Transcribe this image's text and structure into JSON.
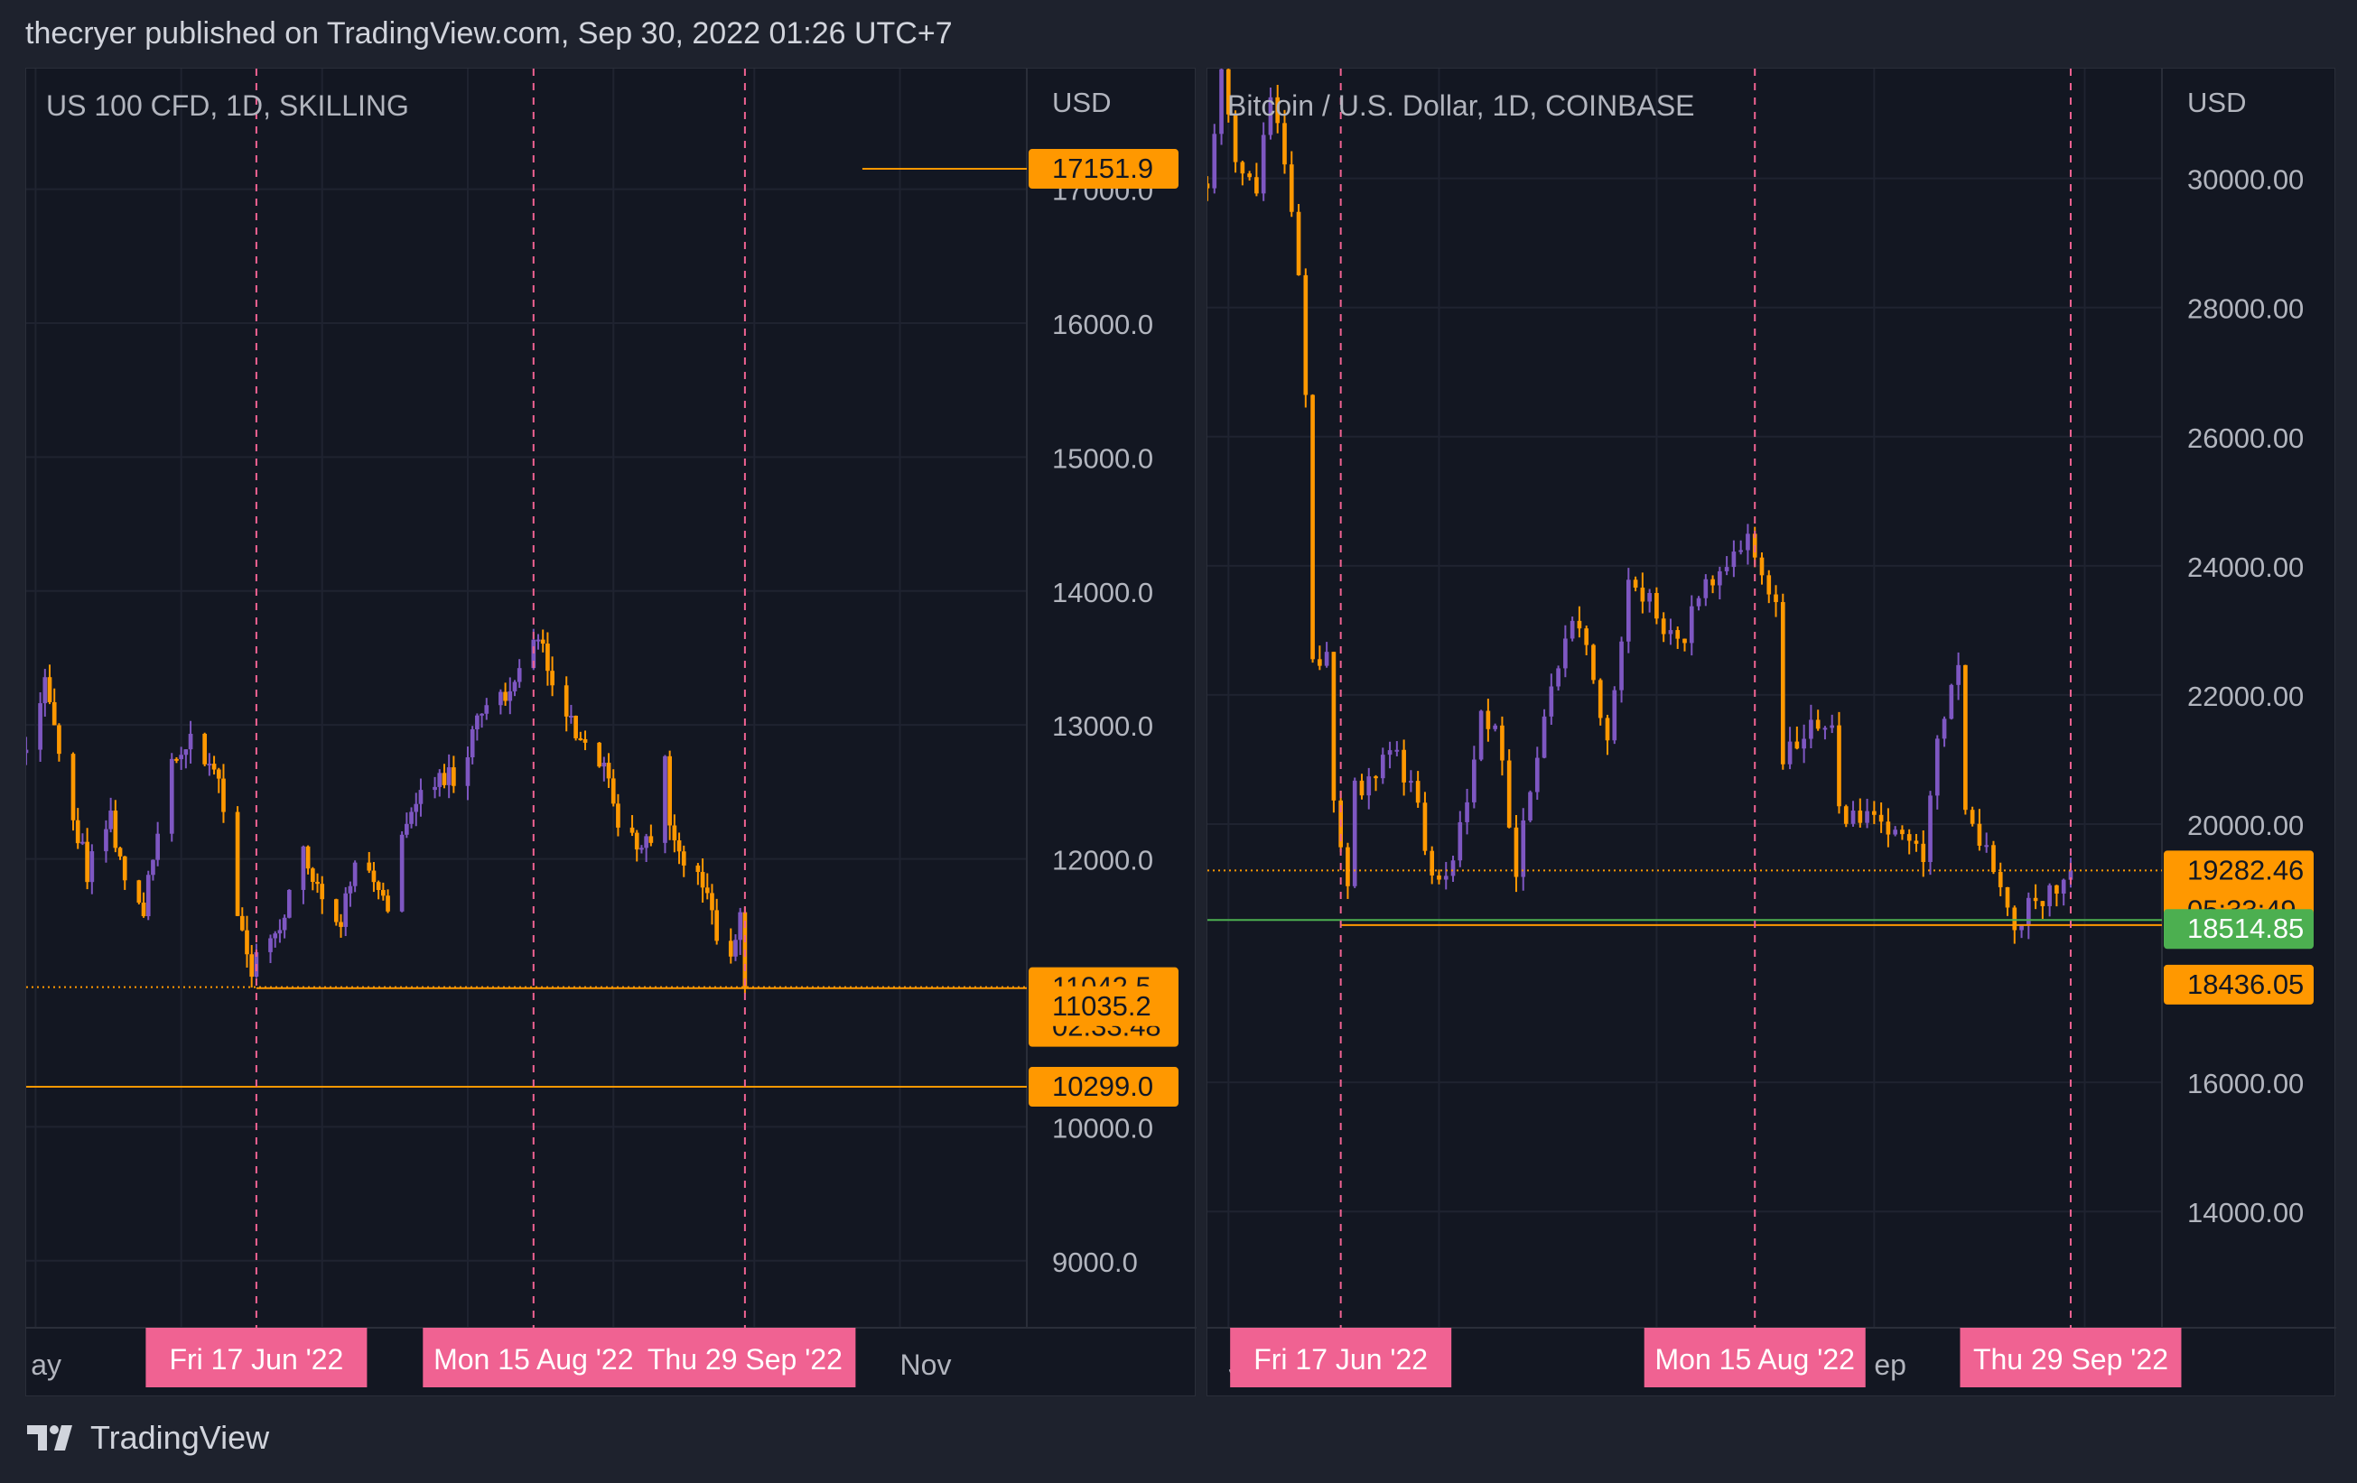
{
  "header": {
    "text": "thecryer published on TradingView.com, Sep 30, 2022 01:26 UTC+7"
  },
  "footer": {
    "brand": "TradingView"
  },
  "chart_data": [
    {
      "type": "candlestick",
      "title": "US 100 CFD, 1D, SKILLING",
      "currency": "USD",
      "ylim": [
        8500,
        17900
      ],
      "yticks": [
        {
          "value": 9000,
          "label": "9000.0"
        },
        {
          "value": 10000,
          "label": "10000.0"
        },
        {
          "value": 12000,
          "label": "12000.0"
        },
        {
          "value": 13000,
          "label": "13000.0"
        },
        {
          "value": 14000,
          "label": "14000.0"
        },
        {
          "value": 15000,
          "label": "15000.0"
        },
        {
          "value": 16000,
          "label": "16000.0"
        },
        {
          "value": 17000,
          "label": "17000.0"
        }
      ],
      "x_start": "2022-04-29",
      "x_end": "2022-11-28",
      "x_tick_labels": [
        {
          "date": "2022-04-30",
          "label": "ay"
        },
        {
          "date": "2022-11-01",
          "label": "Nov"
        }
      ],
      "date_markers": [
        {
          "date": "2022-06-17",
          "label": "Fri 17 Jun '22"
        },
        {
          "date": "2022-08-15",
          "label": "Mon 15 Aug '22"
        },
        {
          "date": "2022-09-29",
          "label": "Thu 29 Sep '22"
        }
      ],
      "lines": [
        {
          "value": 17151.9,
          "start": "2022-10-24",
          "style": "solid",
          "color": "#ff9800"
        },
        {
          "value": 11035.2,
          "start": "2022-06-17",
          "style": "solid",
          "color": "#ff9800"
        },
        {
          "value": 11042.5,
          "start": "2022-04-29",
          "style": "dotted",
          "color": "#ff9800"
        },
        {
          "value": 10299.0,
          "start": "2022-04-29",
          "style": "solid",
          "color": "#ff9800"
        }
      ],
      "price_labels": [
        {
          "value": 17151.9,
          "text": "17151.9",
          "bg": "#ff9800",
          "fg": "#131722"
        },
        {
          "value": 11042.5,
          "text": "11042.5",
          "sub": "02:33:48",
          "bg": "#ff9800",
          "fg": "#131722"
        },
        {
          "value": 11035.2,
          "text": "11035.2",
          "bg": "#ff9800",
          "fg": "#131722"
        },
        {
          "value": 10299.0,
          "text": "10299.0",
          "bg": "#ff9800",
          "fg": "#131722"
        }
      ],
      "key_points": [
        {
          "date": "2022-04-29",
          "close": 12900
        },
        {
          "date": "2022-05-03",
          "close": 13350
        },
        {
          "date": "2022-05-06",
          "close": 12800
        },
        {
          "date": "2022-05-12",
          "close": 11900
        },
        {
          "date": "2022-05-17",
          "close": 12300
        },
        {
          "date": "2022-05-20",
          "close": 11800
        },
        {
          "date": "2022-05-24",
          "close": 11650
        },
        {
          "date": "2022-05-30",
          "close": 12700
        },
        {
          "date": "2022-06-03",
          "close": 12850
        },
        {
          "date": "2022-06-07",
          "close": 12750
        },
        {
          "date": "2022-06-10",
          "close": 12400
        },
        {
          "date": "2022-06-13",
          "close": 11650
        },
        {
          "date": "2022-06-16",
          "close": 11200
        },
        {
          "date": "2022-06-17",
          "close": 11280
        },
        {
          "date": "2022-06-22",
          "close": 11500
        },
        {
          "date": "2022-06-27",
          "close": 12100
        },
        {
          "date": "2022-07-01",
          "close": 11700
        },
        {
          "date": "2022-07-05",
          "close": 11500
        },
        {
          "date": "2022-07-08",
          "close": 12000
        },
        {
          "date": "2022-07-12",
          "close": 11900
        },
        {
          "date": "2022-07-15",
          "close": 11650
        },
        {
          "date": "2022-07-20",
          "close": 12400
        },
        {
          "date": "2022-07-26",
          "close": 12650
        },
        {
          "date": "2022-07-29",
          "close": 12600
        },
        {
          "date": "2022-08-03",
          "close": 13000
        },
        {
          "date": "2022-08-08",
          "close": 13200
        },
        {
          "date": "2022-08-12",
          "close": 13450
        },
        {
          "date": "2022-08-16",
          "close": 13680
        },
        {
          "date": "2022-08-19",
          "close": 13300
        },
        {
          "date": "2022-08-23",
          "close": 13050
        },
        {
          "date": "2022-08-26",
          "close": 12850
        },
        {
          "date": "2022-08-30",
          "close": 12700
        },
        {
          "date": "2022-09-02",
          "close": 12300
        },
        {
          "date": "2022-09-06",
          "close": 12100
        },
        {
          "date": "2022-09-09",
          "close": 12150
        },
        {
          "date": "2022-09-12",
          "close": 12850
        },
        {
          "date": "2022-09-13",
          "close": 12200
        },
        {
          "date": "2022-09-16",
          "close": 11900
        },
        {
          "date": "2022-09-20",
          "close": 11800
        },
        {
          "date": "2022-09-23",
          "close": 11400
        },
        {
          "date": "2022-09-26",
          "close": 11250
        },
        {
          "date": "2022-09-28",
          "close": 11520
        },
        {
          "date": "2022-09-29",
          "close": 11042.5
        }
      ]
    },
    {
      "type": "candlestick",
      "title": "Bitcoin / U.S. Dollar, 1D, COINBASE",
      "currency": "USD",
      "ylim": [
        12200,
        31700
      ],
      "yticks": [
        {
          "value": 14000,
          "label": "14000.00"
        },
        {
          "value": 16000,
          "label": "16000.00"
        },
        {
          "value": 20000,
          "label": "20000.00"
        },
        {
          "value": 22000,
          "label": "22000.00"
        },
        {
          "value": 24000,
          "label": "24000.00"
        },
        {
          "value": 26000,
          "label": "26000.00"
        },
        {
          "value": 28000,
          "label": "28000.00"
        },
        {
          "value": 30000,
          "label": "30000.00"
        }
      ],
      "x_start": "2022-05-29",
      "x_end": "2022-10-12",
      "x_tick_labels": [
        {
          "date": "2022-06-01",
          "label": "Ju"
        },
        {
          "date": "2022-07-01",
          "label": "l"
        },
        {
          "date": "2022-09-01",
          "label": "ep"
        }
      ],
      "date_markers": [
        {
          "date": "2022-06-17",
          "label": "Fri 17 Jun '22"
        },
        {
          "date": "2022-08-15",
          "label": "Mon 15 Aug '22"
        },
        {
          "date": "2022-09-29",
          "label": "Thu 29 Sep '22"
        }
      ],
      "lines": [
        {
          "value": 19282.46,
          "start": "2022-05-29",
          "style": "dotted",
          "color": "#ff9800"
        },
        {
          "value": 18514.85,
          "start": "2022-05-29",
          "style": "solid",
          "color": "#4caf50"
        },
        {
          "value": 18436.05,
          "start": "2022-06-17",
          "style": "solid",
          "color": "#ff9800"
        }
      ],
      "price_labels": [
        {
          "value": 19282.46,
          "text": "19282.46",
          "sub": "05:33:49",
          "bg": "#ff9800",
          "fg": "#131722"
        },
        {
          "value": 18514.85,
          "text": "18514.85",
          "bg": "#4caf50",
          "fg": "#ffffff"
        },
        {
          "value": 18436.05,
          "text": "18436.05",
          "bg": "#ff9800",
          "fg": "#131722"
        }
      ],
      "key_points": [
        {
          "date": "2022-05-29",
          "close": 30000
        },
        {
          "date": "2022-05-31",
          "close": 31700
        },
        {
          "date": "2022-06-02",
          "close": 30300
        },
        {
          "date": "2022-06-05",
          "close": 29900
        },
        {
          "date": "2022-06-07",
          "close": 31300
        },
        {
          "date": "2022-06-09",
          "close": 30200
        },
        {
          "date": "2022-06-11",
          "close": 28500
        },
        {
          "date": "2022-06-12",
          "close": 26600
        },
        {
          "date": "2022-06-13",
          "close": 22500
        },
        {
          "date": "2022-06-15",
          "close": 22500
        },
        {
          "date": "2022-06-16",
          "close": 20400
        },
        {
          "date": "2022-06-18",
          "close": 18900
        },
        {
          "date": "2022-06-19",
          "close": 20500
        },
        {
          "date": "2022-06-21",
          "close": 20700
        },
        {
          "date": "2022-06-24",
          "close": 21200
        },
        {
          "date": "2022-06-27",
          "close": 20600
        },
        {
          "date": "2022-06-30",
          "close": 19300
        },
        {
          "date": "2022-07-03",
          "close": 19300
        },
        {
          "date": "2022-07-07",
          "close": 21600
        },
        {
          "date": "2022-07-09",
          "close": 21600
        },
        {
          "date": "2022-07-12",
          "close": 19300
        },
        {
          "date": "2022-07-14",
          "close": 20500
        },
        {
          "date": "2022-07-18",
          "close": 22500
        },
        {
          "date": "2022-07-20",
          "close": 23200
        },
        {
          "date": "2022-07-22",
          "close": 22600
        },
        {
          "date": "2022-07-25",
          "close": 21300
        },
        {
          "date": "2022-07-28",
          "close": 23800
        },
        {
          "date": "2022-08-01",
          "close": 23300
        },
        {
          "date": "2022-08-04",
          "close": 22700
        },
        {
          "date": "2022-08-08",
          "close": 23800
        },
        {
          "date": "2022-08-10",
          "close": 23900
        },
        {
          "date": "2022-08-14",
          "close": 24400
        },
        {
          "date": "2022-08-15",
          "close": 24100
        },
        {
          "date": "2022-08-17",
          "close": 23500
        },
        {
          "date": "2022-08-18",
          "close": 23300
        },
        {
          "date": "2022-08-19",
          "close": 21100
        },
        {
          "date": "2022-08-23",
          "close": 21500
        },
        {
          "date": "2022-08-26",
          "close": 21600
        },
        {
          "date": "2022-08-27",
          "close": 20200
        },
        {
          "date": "2022-09-01",
          "close": 20000
        },
        {
          "date": "2022-09-06",
          "close": 19800
        },
        {
          "date": "2022-09-08",
          "close": 19300
        },
        {
          "date": "2022-09-10",
          "close": 21400
        },
        {
          "date": "2022-09-13",
          "close": 22400
        },
        {
          "date": "2022-09-14",
          "close": 20200
        },
        {
          "date": "2022-09-18",
          "close": 19400
        },
        {
          "date": "2022-09-21",
          "close": 18500
        },
        {
          "date": "2022-09-24",
          "close": 18800
        },
        {
          "date": "2022-09-26",
          "close": 19000
        },
        {
          "date": "2022-09-28",
          "close": 19100
        },
        {
          "date": "2022-09-29",
          "close": 19282.46
        }
      ]
    }
  ]
}
